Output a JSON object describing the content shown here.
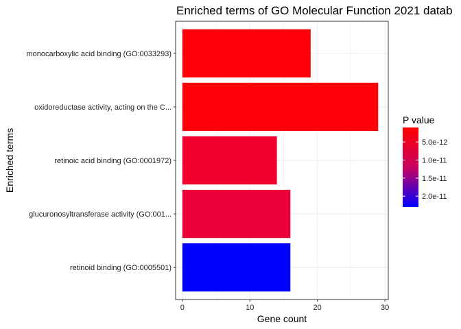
{
  "chart_data": {
    "type": "bar",
    "orientation": "horizontal",
    "title": "Enriched terms of GO Molecular Function 2021 datab",
    "xlabel": "Gene count",
    "ylabel": "Enriched terms",
    "xlim": [
      -1,
      30.5
    ],
    "x_ticks": [
      0,
      10,
      20,
      30
    ],
    "grid": true,
    "legend_position": "right",
    "categories": [
      "monocarboxylic acid binding (GO:0033293)",
      "oxidoreductase activity, acting on the C...",
      "retinoic acid binding (GO:0001972)",
      "glucuronosyltransferase activity (GO:001...",
      "retinoid binding (GO:0005501)"
    ],
    "series": [
      {
        "values": [
          19,
          29,
          14,
          16,
          16
        ],
        "colors": [
          "#ff0008",
          "#ff0008",
          "#f0002e",
          "#ec0039",
          "#0000ff"
        ]
      }
    ],
    "color_legend": {
      "title": "P value",
      "type": "gradient",
      "low_color": "#ff0000",
      "high_color": "#0000ff",
      "labels": [
        "5.0e-12",
        "1.0e-11",
        "1.5e-11",
        "2.0e-11"
      ],
      "tick_values": [
        5e-12,
        1e-11,
        1.5e-11,
        2e-11
      ],
      "range": [
        1e-12,
        2.3e-11
      ]
    }
  }
}
